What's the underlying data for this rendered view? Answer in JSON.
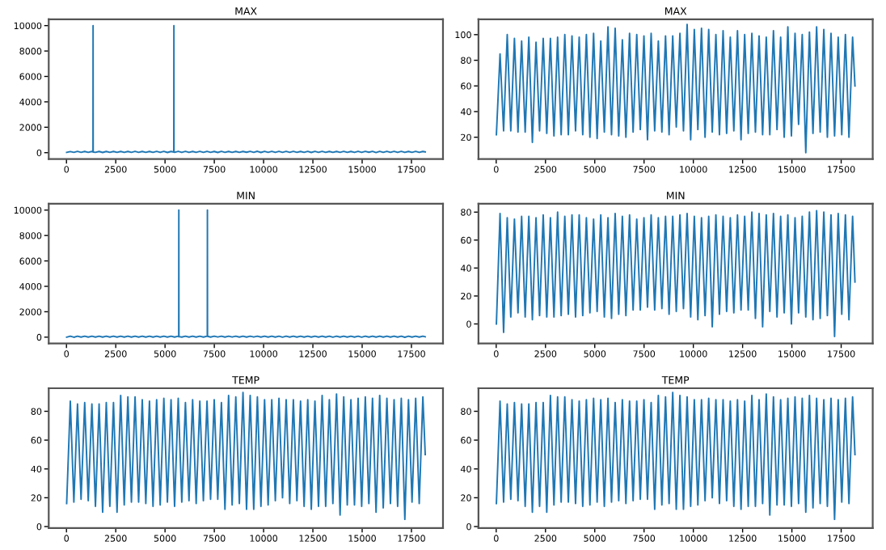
{
  "chart_data": [
    {
      "type": "line",
      "title": "MAX",
      "color": "#1f77b4",
      "xlim": [
        -900,
        19100
      ],
      "xticks": [
        0,
        2500,
        5000,
        7500,
        10000,
        12500,
        15000,
        17500
      ],
      "ylim": [
        -500,
        10500
      ],
      "yticks": [
        0,
        2000,
        4000,
        6000,
        8000,
        10000
      ],
      "x": [
        10,
        195,
        375,
        560,
        740,
        925,
        1105,
        1290,
        1345,
        1350,
        1355,
        1470,
        1655,
        1835,
        2020,
        2200,
        2385,
        2565,
        2750,
        2930,
        3115,
        3295,
        3480,
        3660,
        3845,
        4025,
        4210,
        4390,
        4575,
        4755,
        4940,
        5120,
        5305,
        5445,
        5450,
        5455,
        5485,
        5670,
        5850,
        6035,
        6215,
        6400,
        6580,
        6765,
        6945,
        7130,
        7310,
        7495,
        7675,
        7860,
        8040,
        8225,
        8405,
        8590,
        8770,
        8955,
        9135,
        9320,
        9500,
        9685,
        9865,
        10050,
        10230,
        10415,
        10595,
        10780,
        10960,
        11145,
        11325,
        11510,
        11690,
        11875,
        12055,
        12240,
        12420,
        12605,
        12785,
        12970,
        13150,
        13335,
        13515,
        13700,
        13880,
        14065,
        14245,
        14430,
        14610,
        14795,
        14975,
        15160,
        15340,
        15525,
        15705,
        15890,
        16070,
        16255,
        16435,
        16620,
        16800,
        16985,
        17165,
        17350,
        17530,
        17715,
        17895,
        18080,
        18200
      ],
      "values": [
        22,
        85,
        25,
        100,
        25,
        97,
        24,
        95,
        50,
        10000,
        50,
        24,
        98,
        16,
        94,
        25,
        97,
        23,
        97,
        21,
        98,
        22,
        100,
        22,
        99,
        25,
        98,
        22,
        100,
        20,
        101,
        19,
        95,
        50,
        10000,
        50,
        24,
        106,
        22,
        105,
        21,
        96,
        20,
        101,
        24,
        100,
        26,
        99,
        18,
        101,
        25,
        95,
        24,
        99,
        22,
        99,
        28,
        101,
        25,
        108,
        18,
        104,
        26,
        105,
        20,
        104,
        24,
        100,
        22,
        103,
        23,
        98,
        25,
        103,
        18,
        100,
        23,
        101,
        24,
        99,
        22,
        98,
        22,
        103,
        26,
        98,
        20,
        106,
        21,
        101,
        30,
        100,
        8,
        102,
        23,
        106,
        24,
        104,
        20,
        101,
        21,
        98,
        22,
        100,
        20,
        98,
        60
      ]
    },
    {
      "type": "line",
      "title": "MAX",
      "color": "#1f77b4",
      "xlim": [
        -900,
        19100
      ],
      "xticks": [
        0,
        2500,
        5000,
        7500,
        10000,
        12500,
        15000,
        17500
      ],
      "ylim": [
        3,
        112
      ],
      "yticks": [
        20,
        40,
        60,
        80,
        100
      ],
      "x": [
        10,
        195,
        375,
        560,
        740,
        925,
        1105,
        1290,
        1470,
        1655,
        1835,
        2020,
        2200,
        2385,
        2565,
        2750,
        2930,
        3115,
        3295,
        3480,
        3660,
        3845,
        4025,
        4210,
        4390,
        4575,
        4755,
        4940,
        5120,
        5305,
        5485,
        5670,
        5850,
        6035,
        6215,
        6400,
        6580,
        6765,
        6945,
        7130,
        7310,
        7495,
        7675,
        7860,
        8040,
        8225,
        8405,
        8590,
        8770,
        8955,
        9135,
        9320,
        9500,
        9685,
        9865,
        10050,
        10230,
        10415,
        10595,
        10780,
        10960,
        11145,
        11325,
        11510,
        11690,
        11875,
        12055,
        12240,
        12420,
        12605,
        12785,
        12970,
        13150,
        13335,
        13515,
        13700,
        13880,
        14065,
        14245,
        14430,
        14610,
        14795,
        14975,
        15160,
        15340,
        15525,
        15705,
        15890,
        16070,
        16255,
        16435,
        16620,
        16800,
        16985,
        17165,
        17350,
        17530,
        17715,
        17895,
        18080,
        18200
      ],
      "values": [
        22,
        85,
        25,
        100,
        25,
        97,
        24,
        95,
        24,
        98,
        16,
        94,
        25,
        97,
        23,
        97,
        21,
        98,
        22,
        100,
        22,
        99,
        25,
        98,
        22,
        100,
        20,
        101,
        19,
        95,
        24,
        106,
        22,
        105,
        21,
        96,
        20,
        101,
        24,
        100,
        26,
        99,
        18,
        101,
        25,
        95,
        24,
        99,
        22,
        99,
        28,
        101,
        25,
        108,
        18,
        104,
        26,
        105,
        20,
        104,
        24,
        100,
        22,
        103,
        23,
        98,
        25,
        103,
        18,
        100,
        23,
        101,
        24,
        99,
        22,
        98,
        22,
        103,
        26,
        98,
        20,
        106,
        21,
        101,
        30,
        100,
        8,
        102,
        23,
        106,
        24,
        104,
        20,
        101,
        21,
        98,
        22,
        100,
        20,
        98,
        60
      ]
    },
    {
      "type": "line",
      "title": "MIN",
      "color": "#1f77b4",
      "xlim": [
        -900,
        19100
      ],
      "xticks": [
        0,
        2500,
        5000,
        7500,
        10000,
        12500,
        15000,
        17500
      ],
      "ylim": [
        -500,
        10500
      ],
      "yticks": [
        0,
        2000,
        4000,
        6000,
        8000,
        10000
      ],
      "x": [
        10,
        195,
        375,
        560,
        740,
        925,
        1105,
        1290,
        1470,
        1655,
        1835,
        2020,
        2200,
        2385,
        2565,
        2750,
        2930,
        3115,
        3295,
        3480,
        3660,
        3845,
        4025,
        4210,
        4390,
        4575,
        4755,
        4940,
        5120,
        5305,
        5485,
        5670,
        5695,
        5700,
        5705,
        5850,
        6035,
        6215,
        6400,
        6580,
        6765,
        6945,
        7130,
        7145,
        7150,
        7155,
        7310,
        7495,
        7675,
        7860,
        8040,
        8225,
        8405,
        8590,
        8770,
        8955,
        9135,
        9320,
        9500,
        9685,
        9865,
        10050,
        10230,
        10415,
        10595,
        10780,
        10960,
        11145,
        11325,
        11510,
        11690,
        11875,
        12055,
        12240,
        12420,
        12605,
        12785,
        12970,
        13150,
        13335,
        13515,
        13700,
        13880,
        14065,
        14245,
        14430,
        14610,
        14795,
        14975,
        15160,
        15340,
        15525,
        15705,
        15890,
        16070,
        16255,
        16435,
        16620,
        16800,
        16985,
        17165,
        17350,
        17530,
        17715,
        17895,
        18080,
        18200
      ],
      "values": [
        0,
        79,
        -6,
        76,
        5,
        75,
        8,
        77,
        5,
        77,
        3,
        76,
        6,
        78,
        5,
        76,
        5,
        80,
        6,
        77,
        7,
        78,
        5,
        78,
        6,
        76,
        8,
        75,
        9,
        78,
        5,
        76,
        45,
        10000,
        45,
        4,
        79,
        7,
        77,
        6,
        78,
        10,
        75,
        70,
        10000,
        70,
        10,
        76,
        12,
        78,
        10,
        76,
        11,
        77,
        7,
        77,
        9,
        78,
        11,
        79,
        5,
        77,
        3,
        76,
        6,
        77,
        -2,
        78,
        7,
        77,
        9,
        76,
        8,
        78,
        10,
        77,
        10,
        80,
        4,
        79,
        -2,
        78,
        9,
        79,
        5,
        77,
        8,
        78,
        0,
        76,
        8,
        77,
        5,
        80,
        3,
        81,
        4,
        80,
        6,
        78,
        -9,
        79,
        7,
        78,
        3,
        77,
        30
      ]
    },
    {
      "type": "line",
      "title": "MIN",
      "color": "#1f77b4",
      "xlim": [
        -900,
        19100
      ],
      "xticks": [
        0,
        2500,
        5000,
        7500,
        10000,
        12500,
        15000,
        17500
      ],
      "ylim": [
        -14,
        86
      ],
      "yticks": [
        0,
        20,
        40,
        60,
        80
      ],
      "x": [
        10,
        195,
        375,
        560,
        740,
        925,
        1105,
        1290,
        1470,
        1655,
        1835,
        2020,
        2200,
        2385,
        2565,
        2750,
        2930,
        3115,
        3295,
        3480,
        3660,
        3845,
        4025,
        4210,
        4390,
        4575,
        4755,
        4940,
        5120,
        5305,
        5485,
        5670,
        5850,
        6035,
        6215,
        6400,
        6580,
        6765,
        6945,
        7130,
        7310,
        7495,
        7675,
        7860,
        8040,
        8225,
        8405,
        8590,
        8770,
        8955,
        9135,
        9320,
        9500,
        9685,
        9865,
        10050,
        10230,
        10415,
        10595,
        10780,
        10960,
        11145,
        11325,
        11510,
        11690,
        11875,
        12055,
        12240,
        12420,
        12605,
        12785,
        12970,
        13150,
        13335,
        13515,
        13700,
        13880,
        14065,
        14245,
        14430,
        14610,
        14795,
        14975,
        15160,
        15340,
        15525,
        15705,
        15890,
        16070,
        16255,
        16435,
        16620,
        16800,
        16985,
        17165,
        17350,
        17530,
        17715,
        17895,
        18080,
        18200
      ],
      "values": [
        0,
        79,
        -6,
        76,
        5,
        75,
        8,
        77,
        5,
        77,
        3,
        76,
        6,
        78,
        5,
        76,
        5,
        80,
        6,
        77,
        7,
        78,
        5,
        78,
        6,
        76,
        8,
        75,
        9,
        78,
        5,
        76,
        4,
        79,
        7,
        77,
        6,
        78,
        10,
        75,
        10,
        76,
        12,
        78,
        10,
        76,
        11,
        77,
        7,
        77,
        9,
        78,
        11,
        79,
        5,
        77,
        3,
        76,
        6,
        77,
        -2,
        78,
        7,
        77,
        9,
        76,
        8,
        78,
        10,
        77,
        10,
        80,
        4,
        79,
        -2,
        78,
        9,
        79,
        5,
        77,
        8,
        78,
        0,
        76,
        8,
        77,
        5,
        80,
        3,
        81,
        4,
        80,
        6,
        78,
        -9,
        79,
        7,
        78,
        3,
        77,
        30
      ]
    },
    {
      "type": "line",
      "title": "TEMP",
      "color": "#1f77b4",
      "xlim": [
        -900,
        19100
      ],
      "xticks": [
        0,
        2500,
        5000,
        7500,
        10000,
        12500,
        15000,
        17500
      ],
      "ylim": [
        -1,
        96
      ],
      "yticks": [
        0,
        20,
        40,
        60,
        80
      ],
      "x": [
        10,
        195,
        375,
        560,
        740,
        925,
        1105,
        1290,
        1470,
        1655,
        1835,
        2020,
        2200,
        2385,
        2565,
        2750,
        2930,
        3115,
        3295,
        3480,
        3660,
        3845,
        4025,
        4210,
        4390,
        4575,
        4755,
        4940,
        5120,
        5305,
        5485,
        5670,
        5850,
        6035,
        6215,
        6400,
        6580,
        6765,
        6945,
        7130,
        7310,
        7495,
        7675,
        7860,
        8040,
        8225,
        8405,
        8590,
        8770,
        8955,
        9135,
        9320,
        9500,
        9685,
        9865,
        10050,
        10230,
        10415,
        10595,
        10780,
        10960,
        11145,
        11325,
        11510,
        11690,
        11875,
        12055,
        12240,
        12420,
        12605,
        12785,
        12970,
        13150,
        13335,
        13515,
        13700,
        13880,
        14065,
        14245,
        14430,
        14610,
        14795,
        14975,
        15160,
        15340,
        15525,
        15705,
        15890,
        16070,
        16255,
        16435,
        16620,
        16800,
        16985,
        17165,
        17350,
        17530,
        17715,
        17895,
        18080,
        18200
      ],
      "values": [
        16,
        87,
        17,
        85,
        19,
        86,
        18,
        85,
        14,
        85,
        10,
        86,
        14,
        86,
        10,
        91,
        15,
        90,
        17,
        90,
        17,
        88,
        16,
        87,
        14,
        88,
        15,
        89,
        17,
        88,
        14,
        89,
        17,
        86,
        18,
        88,
        16,
        87,
        18,
        87,
        19,
        88,
        19,
        86,
        12,
        91,
        15,
        90,
        16,
        93,
        12,
        91,
        12,
        90,
        14,
        88,
        15,
        88,
        18,
        89,
        20,
        88,
        16,
        88,
        18,
        87,
        14,
        88,
        12,
        87,
        14,
        91,
        14,
        88,
        16,
        92,
        8,
        90,
        15,
        88,
        15,
        89,
        14,
        90,
        16,
        89,
        10,
        91,
        13,
        89,
        16,
        88,
        14,
        89,
        5,
        88,
        17,
        89,
        16,
        90,
        50
      ]
    },
    {
      "type": "line",
      "title": "TEMP",
      "color": "#1f77b4",
      "xlim": [
        -900,
        19100
      ],
      "xticks": [
        0,
        2500,
        5000,
        7500,
        10000,
        12500,
        15000,
        17500
      ],
      "ylim": [
        -1,
        96
      ],
      "yticks": [
        0,
        20,
        40,
        60,
        80
      ],
      "x": [
        10,
        195,
        375,
        560,
        740,
        925,
        1105,
        1290,
        1470,
        1655,
        1835,
        2020,
        2200,
        2385,
        2565,
        2750,
        2930,
        3115,
        3295,
        3480,
        3660,
        3845,
        4025,
        4210,
        4390,
        4575,
        4755,
        4940,
        5120,
        5305,
        5485,
        5670,
        5850,
        6035,
        6215,
        6400,
        6580,
        6765,
        6945,
        7130,
        7310,
        7495,
        7675,
        7860,
        8040,
        8225,
        8405,
        8590,
        8770,
        8955,
        9135,
        9320,
        9500,
        9685,
        9865,
        10050,
        10230,
        10415,
        10595,
        10780,
        10960,
        11145,
        11325,
        11510,
        11690,
        11875,
        12055,
        12240,
        12420,
        12605,
        12785,
        12970,
        13150,
        13335,
        13515,
        13700,
        13880,
        14065,
        14245,
        14430,
        14610,
        14795,
        14975,
        15160,
        15340,
        15525,
        15705,
        15890,
        16070,
        16255,
        16435,
        16620,
        16800,
        16985,
        17165,
        17350,
        17530,
        17715,
        17895,
        18080,
        18200
      ],
      "values": [
        16,
        87,
        17,
        85,
        19,
        86,
        18,
        85,
        14,
        85,
        10,
        86,
        14,
        86,
        10,
        91,
        15,
        90,
        17,
        90,
        17,
        88,
        16,
        87,
        14,
        88,
        15,
        89,
        17,
        88,
        14,
        89,
        17,
        86,
        18,
        88,
        16,
        87,
        18,
        87,
        19,
        88,
        19,
        86,
        12,
        91,
        15,
        90,
        16,
        93,
        12,
        91,
        12,
        90,
        14,
        88,
        15,
        88,
        18,
        89,
        20,
        88,
        16,
        88,
        18,
        87,
        14,
        88,
        12,
        87,
        14,
        91,
        14,
        88,
        16,
        92,
        8,
        90,
        15,
        88,
        15,
        89,
        14,
        90,
        16,
        89,
        10,
        91,
        13,
        89,
        16,
        88,
        14,
        89,
        5,
        88,
        17,
        89,
        16,
        90,
        50
      ]
    }
  ]
}
